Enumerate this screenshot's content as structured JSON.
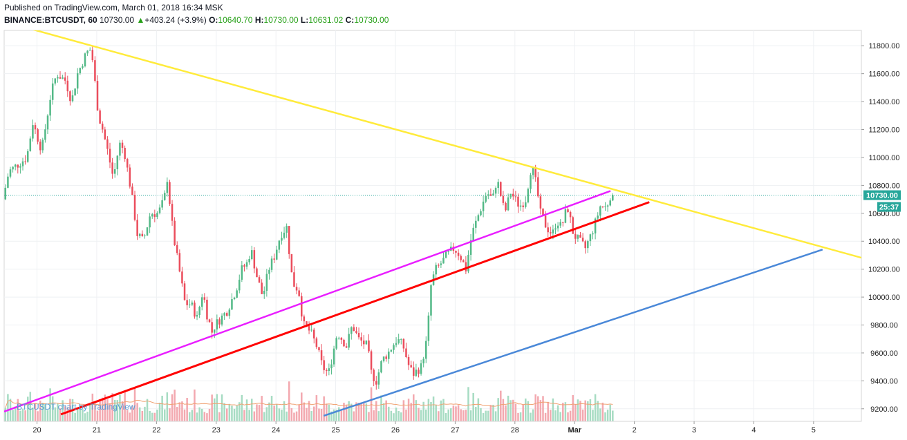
{
  "header": {
    "published": "Published on TradingView.com, March 01, 2018 16:34 MSK",
    "symbol": "BINANCE:BTCUSDT, 60",
    "last": "10730.00",
    "change_arrow": "▲",
    "change": "+403.24 (+3.9%)",
    "o_label": "O:",
    "o_value": "10640.70",
    "h_label": "H:",
    "h_value": "10730.00",
    "l_label": "L:",
    "l_value": "10631.02",
    "c_label": "C:",
    "c_value": "10730.00"
  },
  "price_tag": {
    "value": "10730.00",
    "countdown": "25:37"
  },
  "watermark": "BTCUSDT chart by TradingView",
  "colors": {
    "up": "#53b987",
    "down": "#eb4d5c",
    "vol_up": "#a7dcc3",
    "vol_down": "#f3a9b0",
    "yellow": "#ffeb3b",
    "magenta": "#e91eff",
    "red": "#ff0000",
    "blue": "#4a88d8",
    "ma": "#f0a070"
  },
  "chart_data": {
    "type": "candlestick",
    "symbol": "BINANCE:BTCUSDT",
    "interval": "60",
    "y_ticks": [
      9200,
      9400,
      9600,
      9800,
      10000,
      10200,
      10400,
      10600,
      10800,
      11000,
      11200,
      11400,
      11600,
      11800
    ],
    "y_tick_labels": [
      "9200.00",
      "9400.00",
      "9600.00",
      "9800.00",
      "10000.00",
      "10200.00",
      "10400.00",
      "10600.00",
      "10800.00",
      "11000.00",
      "11200.00",
      "11400.00",
      "11600.00",
      "11800.00"
    ],
    "ylim": [
      9110,
      11910
    ],
    "x_ticks": [
      19.5,
      20.5,
      21.5,
      22.5,
      23.5,
      24.5,
      25.5,
      26.5,
      27.5,
      28.5,
      29.5,
      30.5,
      31.5,
      32.5,
      33.5
    ],
    "x_tick_labels": [
      "20",
      "21",
      "22",
      "23",
      "24",
      "25",
      "26",
      "27",
      "28",
      "Mar",
      "2",
      "3",
      "4",
      "5"
    ],
    "x_tick_positions": [
      20,
      21,
      22,
      23,
      24,
      25,
      26,
      27,
      28,
      29,
      30,
      31,
      32,
      33
    ],
    "xlim": [
      19.45,
      33.8
    ],
    "last_price": 10730,
    "anchors": [
      [
        19.45,
        10700
      ],
      [
        19.55,
        10900
      ],
      [
        19.7,
        10950
      ],
      [
        19.85,
        11000
      ],
      [
        19.95,
        11250
      ],
      [
        20.1,
        11050
      ],
      [
        20.25,
        11450
      ],
      [
        20.35,
        11600
      ],
      [
        20.5,
        11550
      ],
      [
        20.6,
        11400
      ],
      [
        20.7,
        11600
      ],
      [
        20.85,
        11750
      ],
      [
        20.93,
        11780
      ],
      [
        21.0,
        11500
      ],
      [
        21.05,
        11300
      ],
      [
        21.12,
        11200
      ],
      [
        21.2,
        11050
      ],
      [
        21.3,
        10850
      ],
      [
        21.4,
        11100
      ],
      [
        21.48,
        11050
      ],
      [
        21.6,
        10750
      ],
      [
        21.7,
        10450
      ],
      [
        21.8,
        10400
      ],
      [
        21.92,
        10600
      ],
      [
        22.05,
        10600
      ],
      [
        22.15,
        10700
      ],
      [
        22.2,
        10850
      ],
      [
        22.3,
        10450
      ],
      [
        22.4,
        10200
      ],
      [
        22.5,
        9950
      ],
      [
        22.6,
        9950
      ],
      [
        22.7,
        9850
      ],
      [
        22.8,
        10050
      ],
      [
        22.85,
        9900
      ],
      [
        22.95,
        9750
      ],
      [
        23.0,
        9800
      ],
      [
        23.1,
        9850
      ],
      [
        23.2,
        9900
      ],
      [
        23.35,
        10050
      ],
      [
        23.45,
        10200
      ],
      [
        23.55,
        10250
      ],
      [
        23.6,
        10350
      ],
      [
        23.7,
        10150
      ],
      [
        23.8,
        10000
      ],
      [
        23.9,
        10200
      ],
      [
        24.0,
        10300
      ],
      [
        24.1,
        10450
      ],
      [
        24.2,
        10500
      ],
      [
        24.3,
        10100
      ],
      [
        24.4,
        10050
      ],
      [
        24.48,
        9800
      ],
      [
        24.6,
        9750
      ],
      [
        24.7,
        9650
      ],
      [
        24.8,
        9500
      ],
      [
        24.9,
        9450
      ],
      [
        25.05,
        9750
      ],
      [
        25.2,
        9650
      ],
      [
        25.3,
        9800
      ],
      [
        25.4,
        9700
      ],
      [
        25.55,
        9650
      ],
      [
        25.62,
        9450
      ],
      [
        25.7,
        9400
      ],
      [
        25.8,
        9550
      ],
      [
        25.9,
        9600
      ],
      [
        25.97,
        9650
      ],
      [
        26.05,
        9700
      ],
      [
        26.15,
        9650
      ],
      [
        26.25,
        9500
      ],
      [
        26.32,
        9450
      ],
      [
        26.45,
        9500
      ],
      [
        26.55,
        9700
      ],
      [
        26.62,
        10100
      ],
      [
        26.7,
        10200
      ],
      [
        26.8,
        10250
      ],
      [
        26.88,
        10300
      ],
      [
        27.0,
        10350
      ],
      [
        27.1,
        10300
      ],
      [
        27.2,
        10200
      ],
      [
        27.3,
        10450
      ],
      [
        27.42,
        10600
      ],
      [
        27.55,
        10750
      ],
      [
        27.65,
        10700
      ],
      [
        27.72,
        10850
      ],
      [
        27.85,
        10600
      ],
      [
        27.95,
        10750
      ],
      [
        28.1,
        10650
      ],
      [
        28.2,
        10700
      ],
      [
        28.3,
        10950
      ],
      [
        28.38,
        10800
      ],
      [
        28.45,
        10600
      ],
      [
        28.55,
        10500
      ],
      [
        28.65,
        10450
      ],
      [
        28.72,
        10550
      ],
      [
        28.8,
        10500
      ],
      [
        28.9,
        10650
      ],
      [
        29.0,
        10450
      ],
      [
        29.1,
        10400
      ],
      [
        29.2,
        10350
      ],
      [
        29.3,
        10450
      ],
      [
        29.38,
        10550
      ],
      [
        29.45,
        10650
      ],
      [
        29.55,
        10640
      ],
      [
        29.62,
        10730
      ]
    ],
    "trendlines": [
      {
        "color": "yellow",
        "from": [
          19.9,
          11920
        ],
        "to": [
          33.9,
          10270
        ]
      },
      {
        "color": "magenta",
        "from": [
          19.45,
          9180
        ],
        "to": [
          29.6,
          10760
        ]
      },
      {
        "color": "red",
        "from": [
          20.4,
          9160
        ],
        "to": [
          30.25,
          10680
        ]
      },
      {
        "color": "blue",
        "from": [
          24.8,
          9150
        ],
        "to": [
          33.15,
          10340
        ]
      }
    ]
  }
}
